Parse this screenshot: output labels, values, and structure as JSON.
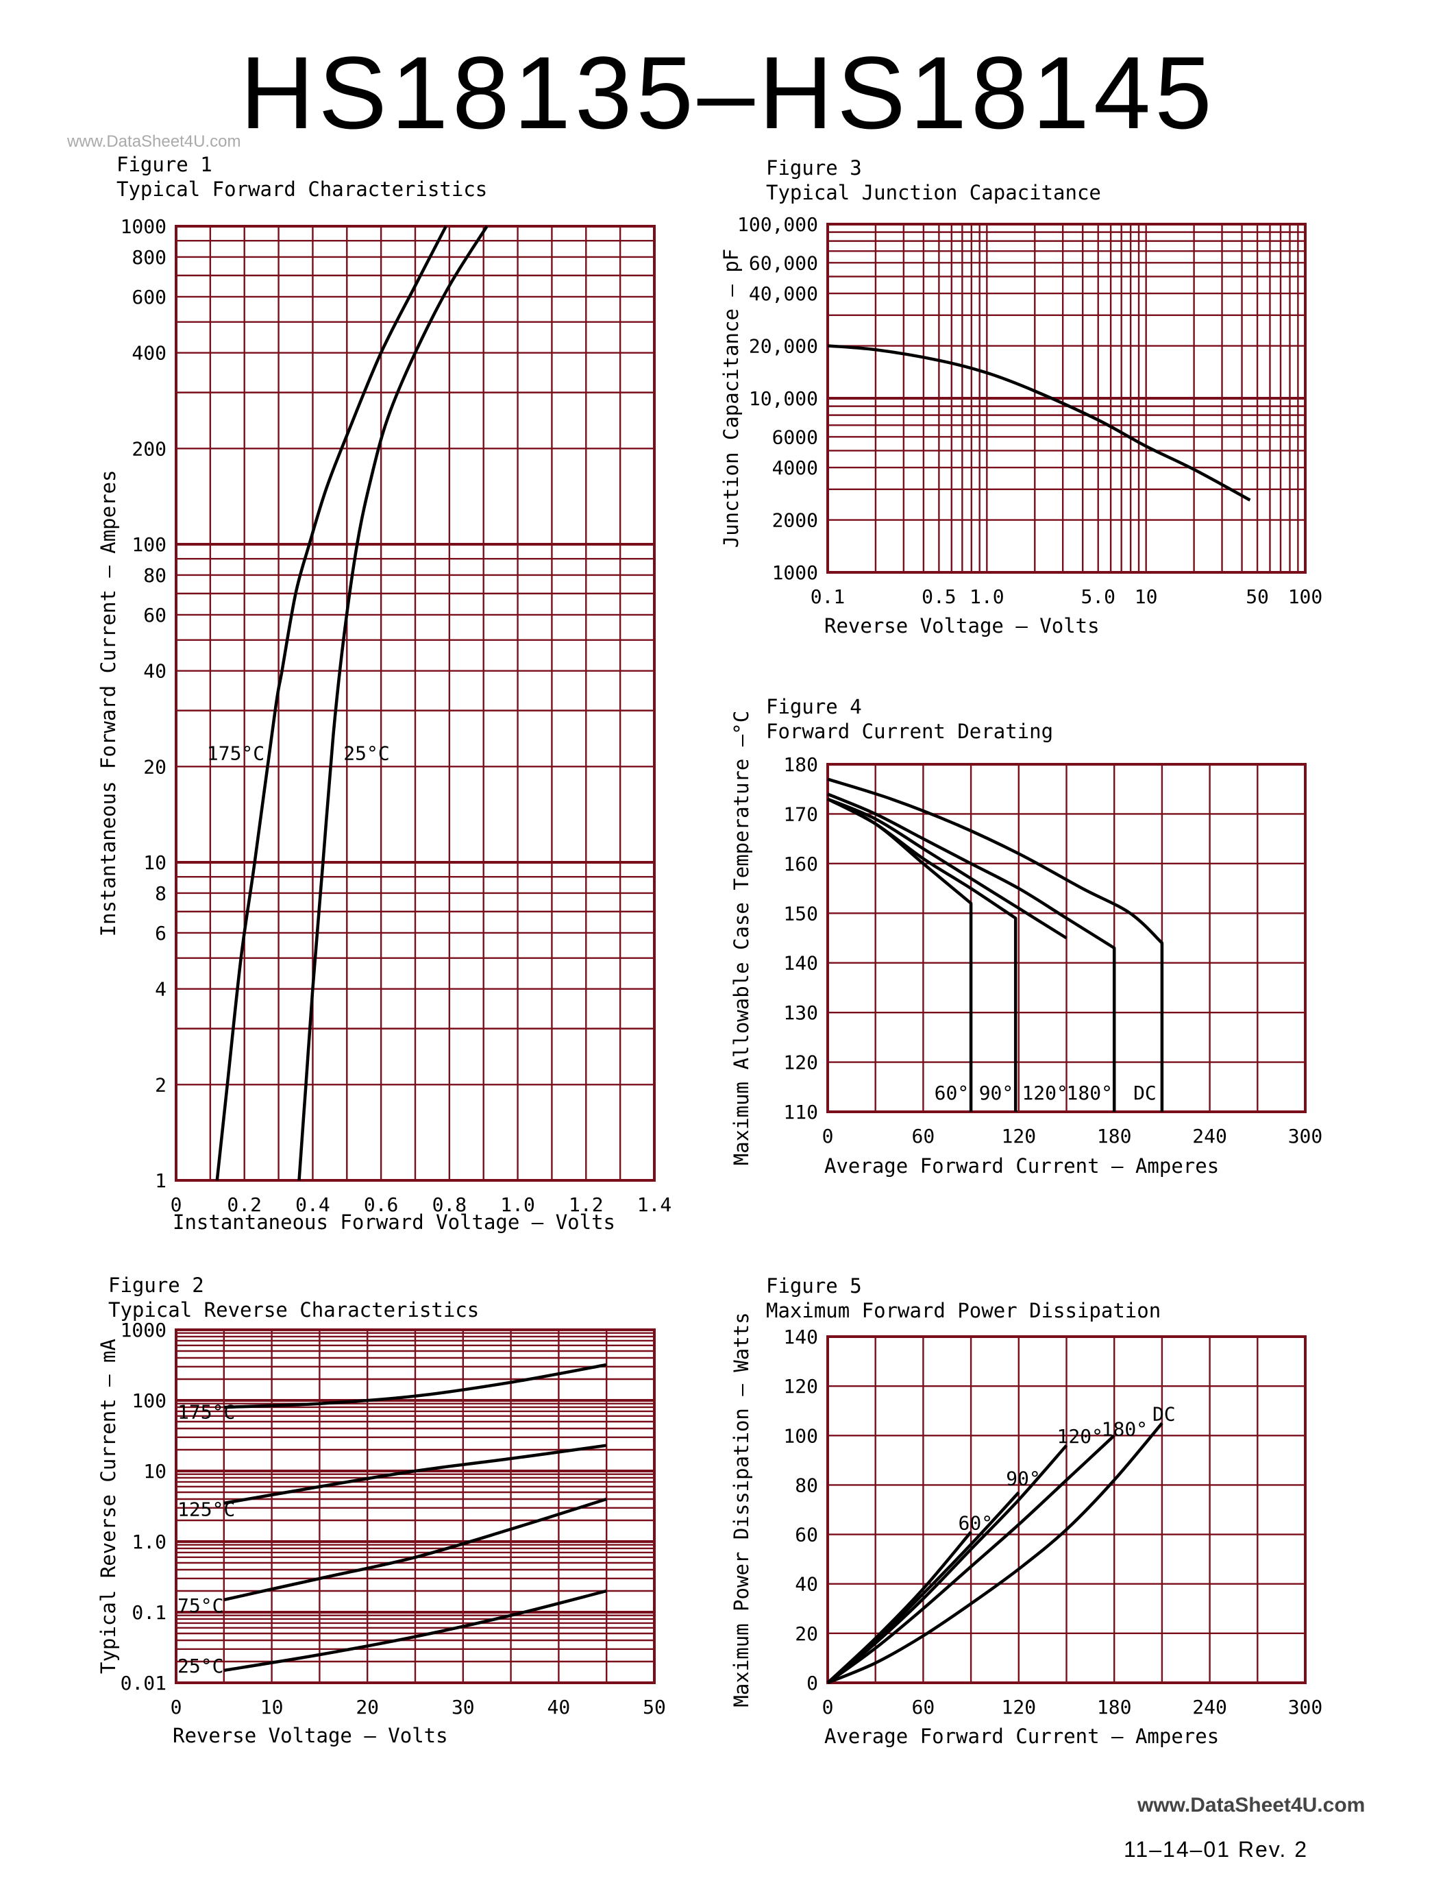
{
  "header": {
    "title": "HS18135–HS18145",
    "watermark": "www.DataSheet4U.com"
  },
  "footer": {
    "watermark": "www.DataSheet4U.com",
    "revision": "11–14–01   Rev. 2"
  },
  "colors": {
    "grid": "#7a0f1c",
    "curve": "#000000"
  },
  "figures": {
    "fig1": {
      "label": "Figure 1",
      "caption": "Typical Forward Characteristics"
    },
    "fig2": {
      "label": "Figure 2",
      "caption": "Typical Reverse Characteristics"
    },
    "fig3": {
      "label": "Figure 3",
      "caption": "Typical Junction Capacitance"
    },
    "fig4": {
      "label": "Figure 4",
      "caption": "Forward Current Derating"
    },
    "fig5": {
      "label": "Figure 5",
      "caption": "Maximum Forward Power Dissipation"
    }
  },
  "chart_data": [
    {
      "id": "fig1",
      "type": "line",
      "title": "Typical Forward Characteristics",
      "xlabel": "Instantaneous Forward Voltage – Volts",
      "ylabel": "Instantaneous Forward Current – Amperes",
      "xlim": [
        0,
        1.4
      ],
      "ylim": [
        1,
        1000
      ],
      "yscale": "log",
      "x_ticks": [
        {
          "v": 0,
          "t": "0"
        },
        {
          "v": 0.2,
          "t": "0.2"
        },
        {
          "v": 0.4,
          "t": "0.4"
        },
        {
          "v": 0.6,
          "t": "0.6"
        },
        {
          "v": 0.8,
          "t": "0.8"
        },
        {
          "v": 1.0,
          "t": "1.0"
        },
        {
          "v": 1.2,
          "t": "1.2"
        },
        {
          "v": 1.4,
          "t": "1.4"
        }
      ],
      "y_ticks": [
        {
          "v": 1,
          "t": "1"
        },
        {
          "v": 2,
          "t": "2"
        },
        {
          "v": 4,
          "t": "4"
        },
        {
          "v": 6,
          "t": "6"
        },
        {
          "v": 8,
          "t": "8"
        },
        {
          "v": 10,
          "t": "10"
        },
        {
          "v": 20,
          "t": "20"
        },
        {
          "v": 40,
          "t": "40"
        },
        {
          "v": 60,
          "t": "60"
        },
        {
          "v": 80,
          "t": "80"
        },
        {
          "v": 100,
          "t": "100"
        },
        {
          "v": 200,
          "t": "200"
        },
        {
          "v": 400,
          "t": "400"
        },
        {
          "v": 600,
          "t": "600"
        },
        {
          "v": 800,
          "t": "800"
        },
        {
          "v": 1000,
          "t": "1000"
        }
      ],
      "x_grid": [
        0.1,
        0.2,
        0.3,
        0.4,
        0.5,
        0.6,
        0.7,
        0.8,
        0.9,
        1.0,
        1.1,
        1.2,
        1.3
      ],
      "y_grid": [
        2,
        3,
        4,
        5,
        6,
        7,
        8,
        9,
        10,
        20,
        30,
        40,
        50,
        60,
        70,
        80,
        90,
        100,
        200,
        300,
        400,
        500,
        600,
        700,
        800,
        900
      ],
      "grid": true,
      "series": [
        {
          "name": "175°C",
          "label_at": [
            0.09,
            21
          ],
          "points": [
            [
              0.12,
              1
            ],
            [
              0.15,
              2
            ],
            [
              0.19,
              5
            ],
            [
              0.23,
              10
            ],
            [
              0.29,
              30
            ],
            [
              0.31,
              40
            ],
            [
              0.35,
              70
            ],
            [
              0.39,
              100
            ],
            [
              0.44,
              150
            ],
            [
              0.5,
              220
            ],
            [
              0.6,
              400
            ],
            [
              0.7,
              650
            ],
            [
              0.79,
              1000
            ]
          ]
        },
        {
          "name": "25°C",
          "label_at": [
            0.49,
            21
          ],
          "points": [
            [
              0.36,
              1
            ],
            [
              0.38,
              2
            ],
            [
              0.4,
              4
            ],
            [
              0.43,
              10
            ],
            [
              0.46,
              25
            ],
            [
              0.49,
              50
            ],
            [
              0.53,
              100
            ],
            [
              0.57,
              160
            ],
            [
              0.62,
              250
            ],
            [
              0.7,
              400
            ],
            [
              0.8,
              650
            ],
            [
              0.91,
              1000
            ]
          ]
        }
      ]
    },
    {
      "id": "fig2",
      "type": "line",
      "title": "Typical Reverse Characteristics",
      "xlabel": "Reverse Voltage – Volts",
      "ylabel": "Typical Reverse Current – mA",
      "xlim": [
        0,
        50
      ],
      "ylim": [
        0.01,
        1000
      ],
      "yscale": "log",
      "x_ticks": [
        {
          "v": 0,
          "t": "0"
        },
        {
          "v": 10,
          "t": "10"
        },
        {
          "v": 20,
          "t": "20"
        },
        {
          "v": 30,
          "t": "30"
        },
        {
          "v": 40,
          "t": "40"
        },
        {
          "v": 50,
          "t": "50"
        }
      ],
      "y_ticks": [
        {
          "v": 0.01,
          "t": "0.01"
        },
        {
          "v": 0.1,
          "t": "0.1"
        },
        {
          "v": 1,
          "t": "1.0"
        },
        {
          "v": 10,
          "t": "10"
        },
        {
          "v": 100,
          "t": "100"
        },
        {
          "v": 1000,
          "t": "1000"
        }
      ],
      "x_grid": [
        5,
        10,
        15,
        20,
        25,
        30,
        35,
        40,
        45
      ],
      "y_grid": "log-minor",
      "grid": true,
      "series": [
        {
          "name": "175°C",
          "label_at": [
            0,
            55
          ],
          "points": [
            [
              5,
              80
            ],
            [
              15,
              90
            ],
            [
              25,
              115
            ],
            [
              35,
              180
            ],
            [
              45,
              320
            ]
          ]
        },
        {
          "name": "125°C",
          "label_at": [
            0,
            2.3
          ],
          "points": [
            [
              5,
              3.5
            ],
            [
              15,
              6
            ],
            [
              25,
              10
            ],
            [
              35,
              15
            ],
            [
              45,
              23
            ]
          ]
        },
        {
          "name": "75°C",
          "label_at": [
            0,
            0.1
          ],
          "points": [
            [
              5,
              0.15
            ],
            [
              15,
              0.3
            ],
            [
              25,
              0.6
            ],
            [
              35,
              1.5
            ],
            [
              45,
              4
            ]
          ]
        },
        {
          "name": "25°C",
          "label_at": [
            0,
            0.014
          ],
          "points": [
            [
              5,
              0.015
            ],
            [
              15,
              0.025
            ],
            [
              25,
              0.045
            ],
            [
              35,
              0.09
            ],
            [
              45,
              0.2
            ]
          ]
        }
      ]
    },
    {
      "id": "fig3",
      "type": "line",
      "title": "Typical Junction Capacitance",
      "xlabel": "Reverse Voltage – Volts",
      "ylabel": "Junction Capacitance – pF",
      "xlim": [
        0.1,
        100
      ],
      "ylim": [
        1000,
        100000
      ],
      "xscale": "log",
      "yscale": "log",
      "x_ticks": [
        {
          "v": 0.1,
          "t": "0.1"
        },
        {
          "v": 0.5,
          "t": "0.5"
        },
        {
          "v": 1,
          "t": "1.0"
        },
        {
          "v": 5,
          "t": "5.0"
        },
        {
          "v": 10,
          "t": "10"
        },
        {
          "v": 50,
          "t": "50"
        },
        {
          "v": 100,
          "t": "100"
        }
      ],
      "y_ticks": [
        {
          "v": 1000,
          "t": "1000"
        },
        {
          "v": 2000,
          "t": "2000"
        },
        {
          "v": 4000,
          "t": "4000"
        },
        {
          "v": 6000,
          "t": "6000"
        },
        {
          "v": 10000,
          "t": "10,000"
        },
        {
          "v": 20000,
          "t": "20,000"
        },
        {
          "v": 40000,
          "t": "40,000"
        },
        {
          "v": 60000,
          "t": "60,000"
        },
        {
          "v": 100000,
          "t": "100,000"
        }
      ],
      "x_grid": "log-minor",
      "y_grid": "log-minor",
      "grid": true,
      "series": [
        {
          "name": "",
          "points": [
            [
              0.1,
              20000
            ],
            [
              0.2,
              19000
            ],
            [
              0.5,
              16500
            ],
            [
              1,
              14000
            ],
            [
              2,
              11000
            ],
            [
              5,
              7500
            ],
            [
              10,
              5300
            ],
            [
              20,
              3900
            ],
            [
              45,
              2600
            ]
          ]
        }
      ]
    },
    {
      "id": "fig4",
      "type": "line",
      "title": "Forward Current Derating",
      "xlabel": "Average Forward Current – Amperes",
      "ylabel": "Maximum Allowable Case Temperature –°C",
      "xlim": [
        0,
        300
      ],
      "ylim": [
        110,
        180
      ],
      "x_ticks": [
        {
          "v": 0,
          "t": "0"
        },
        {
          "v": 60,
          "t": "60"
        },
        {
          "v": 120,
          "t": "120"
        },
        {
          "v": 180,
          "t": "180"
        },
        {
          "v": 240,
          "t": "240"
        },
        {
          "v": 300,
          "t": "300"
        }
      ],
      "y_ticks": [
        {
          "v": 110,
          "t": "110"
        },
        {
          "v": 120,
          "t": "120"
        },
        {
          "v": 130,
          "t": "130"
        },
        {
          "v": 140,
          "t": "140"
        },
        {
          "v": 150,
          "t": "150"
        },
        {
          "v": 160,
          "t": "160"
        },
        {
          "v": 170,
          "t": "170"
        },
        {
          "v": 180,
          "t": "180"
        }
      ],
      "x_grid": [
        30,
        60,
        90,
        120,
        150,
        180,
        210,
        240,
        270
      ],
      "y_grid": [
        120,
        130,
        140,
        150,
        160,
        170
      ],
      "grid": true,
      "series": [
        {
          "name": "60°",
          "label_at": [
            67,
            112.5
          ],
          "drop_to_floor": true,
          "points": [
            [
              0,
              173
            ],
            [
              30,
              168
            ],
            [
              60,
              160
            ],
            [
              90,
              152
            ]
          ]
        },
        {
          "name": "90°",
          "label_at": [
            95,
            112.5
          ],
          "drop_to_floor": true,
          "points": [
            [
              0,
              173
            ],
            [
              30,
              168
            ],
            [
              60,
              161
            ],
            [
              90,
              155
            ],
            [
              118,
              149
            ]
          ]
        },
        {
          "name": "120°",
          "label_at": [
            122,
            112.5
          ],
          "drop_to_floor": false,
          "points": [
            [
              0,
              173
            ],
            [
              30,
              169
            ],
            [
              60,
              163
            ],
            [
              90,
              157
            ],
            [
              120,
              151
            ],
            [
              150,
              145
            ]
          ]
        },
        {
          "name": "180°",
          "label_at": [
            150,
            112.5
          ],
          "drop_to_floor": true,
          "points": [
            [
              0,
              174
            ],
            [
              30,
              170
            ],
            [
              60,
              165
            ],
            [
              90,
              160
            ],
            [
              120,
              155
            ],
            [
              150,
              149
            ],
            [
              180,
              143
            ]
          ]
        },
        {
          "name": "DC",
          "label_at": [
            192,
            112.5
          ],
          "drop_to_floor": true,
          "points": [
            [
              0,
              177
            ],
            [
              40,
              173
            ],
            [
              80,
              168
            ],
            [
              120,
              162
            ],
            [
              160,
              155
            ],
            [
              190,
              150
            ],
            [
              210,
              144
            ]
          ]
        }
      ]
    },
    {
      "id": "fig5",
      "type": "line",
      "title": "Maximum Forward Power Dissipation",
      "xlabel": "Average Forward Current – Amperes",
      "ylabel": "Maximum Power Dissipation – Watts",
      "xlim": [
        0,
        300
      ],
      "ylim": [
        0,
        140
      ],
      "x_ticks": [
        {
          "v": 0,
          "t": "0"
        },
        {
          "v": 60,
          "t": "60"
        },
        {
          "v": 120,
          "t": "120"
        },
        {
          "v": 180,
          "t": "180"
        },
        {
          "v": 240,
          "t": "240"
        },
        {
          "v": 300,
          "t": "300"
        }
      ],
      "y_ticks": [
        {
          "v": 0,
          "t": "0"
        },
        {
          "v": 20,
          "t": "20"
        },
        {
          "v": 40,
          "t": "40"
        },
        {
          "v": 60,
          "t": "60"
        },
        {
          "v": 80,
          "t": "80"
        },
        {
          "v": 100,
          "t": "100"
        },
        {
          "v": 120,
          "t": "120"
        },
        {
          "v": 140,
          "t": "140"
        }
      ],
      "x_grid": [
        30,
        60,
        90,
        120,
        150,
        180,
        210,
        240,
        270
      ],
      "y_grid": [
        20,
        40,
        60,
        80,
        100,
        120
      ],
      "grid": true,
      "series": [
        {
          "name": "60°",
          "label_at": [
            82,
            62
          ],
          "points": [
            [
              0,
              0
            ],
            [
              30,
              18
            ],
            [
              60,
              38
            ],
            [
              90,
              61
            ]
          ]
        },
        {
          "name": "90°",
          "label_at": [
            112,
            80
          ],
          "points": [
            [
              0,
              0
            ],
            [
              30,
              17
            ],
            [
              60,
              36
            ],
            [
              90,
              56
            ],
            [
              120,
              77
            ]
          ]
        },
        {
          "name": "120°",
          "label_at": [
            144,
            97
          ],
          "points": [
            [
              0,
              0
            ],
            [
              30,
              16
            ],
            [
              60,
              34
            ],
            [
              90,
              54
            ],
            [
              120,
              74
            ],
            [
              150,
              96
            ]
          ]
        },
        {
          "name": "180°",
          "label_at": [
            172,
            100
          ],
          "points": [
            [
              0,
              0
            ],
            [
              30,
              14
            ],
            [
              60,
              30
            ],
            [
              90,
              47
            ],
            [
              120,
              64
            ],
            [
              150,
              82
            ],
            [
              180,
              100
            ]
          ]
        },
        {
          "name": "DC",
          "label_at": [
            204,
            106
          ],
          "points": [
            [
              0,
              0
            ],
            [
              30,
              8
            ],
            [
              60,
              19
            ],
            [
              90,
              32
            ],
            [
              120,
              46
            ],
            [
              150,
              62
            ],
            [
              180,
              82
            ],
            [
              210,
              105
            ]
          ]
        }
      ]
    }
  ]
}
